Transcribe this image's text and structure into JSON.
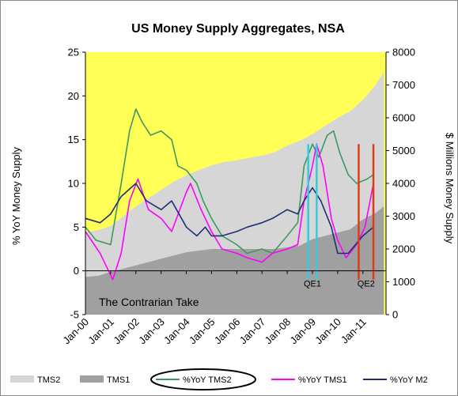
{
  "chart_data": {
    "type": "area",
    "title": "US Money Supply Aggregates, NSA",
    "ylabel": "% YoY  Money  Supply",
    "y2label": "$ Millions  Money  Supply",
    "ylim": [
      -5,
      25
    ],
    "yticks": [
      "-5",
      "0",
      "5",
      "10",
      "15",
      "20",
      "25"
    ],
    "y2lim": [
      0,
      8000
    ],
    "y2ticks": [
      "0",
      "1000",
      "2000",
      "3000",
      "4000",
      "5000",
      "6000",
      "7000",
      "8000"
    ],
    "xlim": [
      "2000-01",
      "2011-12"
    ],
    "xticks": [
      {
        "label": "Jan-00",
        "x": "2000-01"
      },
      {
        "label": "Jan-01",
        "x": "2001-01"
      },
      {
        "label": "Jan-02",
        "x": "2002-01"
      },
      {
        "label": "Jan-03",
        "x": "2003-01"
      },
      {
        "label": "Jan-04",
        "x": "2004-01"
      },
      {
        "label": "Jan-05",
        "x": "2005-01"
      },
      {
        "label": "Jan-06",
        "x": "2006-01"
      },
      {
        "label": "Jan-07",
        "x": "2007-01"
      },
      {
        "label": "Jan-08",
        "x": "2008-01"
      },
      {
        "label": "Jan-09",
        "x": "2009-01"
      },
      {
        "label": "Jan-10",
        "x": "2010-01"
      },
      {
        "label": "Jan-11",
        "x": "2011-01"
      }
    ],
    "annotation": "The Contrarian Take",
    "background_color": "#ffff55",
    "series": [
      {
        "name": "TMS2",
        "axis": "right",
        "kind": "area",
        "color": "#d6d6d6",
        "points": [
          [
            "2000-01",
            2500
          ],
          [
            "2000-07",
            2570
          ],
          [
            "2001-01",
            2700
          ],
          [
            "2001-07",
            3000
          ],
          [
            "2002-01",
            3300
          ],
          [
            "2002-07",
            3550
          ],
          [
            "2003-01",
            3800
          ],
          [
            "2003-07",
            4050
          ],
          [
            "2004-01",
            4250
          ],
          [
            "2004-07",
            4400
          ],
          [
            "2005-01",
            4550
          ],
          [
            "2005-07",
            4650
          ],
          [
            "2006-01",
            4700
          ],
          [
            "2006-07",
            4780
          ],
          [
            "2007-01",
            4850
          ],
          [
            "2007-07",
            4950
          ],
          [
            "2008-01",
            5150
          ],
          [
            "2008-07",
            5300
          ],
          [
            "2009-01",
            5500
          ],
          [
            "2009-07",
            5750
          ],
          [
            "2010-01",
            6000
          ],
          [
            "2010-07",
            6200
          ],
          [
            "2011-01",
            6550
          ],
          [
            "2011-07",
            7000
          ],
          [
            "2011-11",
            7400
          ]
        ]
      },
      {
        "name": "TMS1",
        "axis": "right",
        "kind": "area",
        "color": "#a0a0a0",
        "points": [
          [
            "2000-01",
            1150
          ],
          [
            "2000-07",
            1180
          ],
          [
            "2001-01",
            1300
          ],
          [
            "2001-07",
            1400
          ],
          [
            "2002-01",
            1500
          ],
          [
            "2002-07",
            1600
          ],
          [
            "2003-01",
            1700
          ],
          [
            "2003-07",
            1800
          ],
          [
            "2004-01",
            1900
          ],
          [
            "2004-07",
            1950
          ],
          [
            "2005-01",
            2000
          ],
          [
            "2005-07",
            2000
          ],
          [
            "2006-01",
            2000
          ],
          [
            "2006-07",
            2000
          ],
          [
            "2007-01",
            2000
          ],
          [
            "2007-07",
            2000
          ],
          [
            "2008-01",
            2050
          ],
          [
            "2008-07",
            2100
          ],
          [
            "2009-01",
            2300
          ],
          [
            "2009-07",
            2400
          ],
          [
            "2010-01",
            2500
          ],
          [
            "2010-07",
            2600
          ],
          [
            "2011-01",
            2900
          ],
          [
            "2011-07",
            3100
          ],
          [
            "2011-11",
            3300
          ]
        ]
      },
      {
        "name": "%YoY TMS2",
        "axis": "left",
        "kind": "line",
        "color": "#3d9961",
        "points": [
          [
            "2000-01",
            5
          ],
          [
            "2000-06",
            3.5
          ],
          [
            "2001-01",
            3
          ],
          [
            "2001-06",
            10
          ],
          [
            "2001-10",
            16
          ],
          [
            "2002-01",
            18.5
          ],
          [
            "2002-04",
            17
          ],
          [
            "2002-08",
            15.5
          ],
          [
            "2003-01",
            16
          ],
          [
            "2003-06",
            15
          ],
          [
            "2003-09",
            12
          ],
          [
            "2004-01",
            11.5
          ],
          [
            "2004-06",
            10
          ],
          [
            "2004-09",
            8
          ],
          [
            "2005-01",
            6
          ],
          [
            "2005-06",
            4
          ],
          [
            "2006-01",
            3
          ],
          [
            "2006-06",
            2
          ],
          [
            "2007-01",
            2.5
          ],
          [
            "2007-06",
            2
          ],
          [
            "2008-01",
            4
          ],
          [
            "2008-06",
            5.5
          ],
          [
            "2008-09",
            12
          ],
          [
            "2009-01",
            14.5
          ],
          [
            "2009-04",
            13
          ],
          [
            "2009-08",
            15.5
          ],
          [
            "2009-11",
            16
          ],
          [
            "2010-02",
            13.5
          ],
          [
            "2010-06",
            11
          ],
          [
            "2010-10",
            10
          ],
          [
            "2011-03",
            10.5
          ],
          [
            "2011-06",
            11
          ]
        ]
      },
      {
        "name": "%YoY TMS1",
        "axis": "left",
        "kind": "line",
        "color": "#ff00ff",
        "points": [
          [
            "2000-01",
            4.5
          ],
          [
            "2000-08",
            2
          ],
          [
            "2001-02",
            -1
          ],
          [
            "2001-06",
            2
          ],
          [
            "2001-10",
            8
          ],
          [
            "2002-02",
            10.5
          ],
          [
            "2002-07",
            7
          ],
          [
            "2003-01",
            6
          ],
          [
            "2003-06",
            4.5
          ],
          [
            "2004-01",
            9
          ],
          [
            "2004-03",
            10
          ],
          [
            "2004-08",
            7
          ],
          [
            "2005-01",
            4.5
          ],
          [
            "2005-06",
            2.5
          ],
          [
            "2006-01",
            2
          ],
          [
            "2006-06",
            1.5
          ],
          [
            "2007-01",
            1
          ],
          [
            "2007-06",
            2
          ],
          [
            "2008-01",
            2.5
          ],
          [
            "2008-06",
            3
          ],
          [
            "2008-09",
            8
          ],
          [
            "2009-01",
            12
          ],
          [
            "2009-03",
            14.5
          ],
          [
            "2009-06",
            12
          ],
          [
            "2009-10",
            6
          ],
          [
            "2010-01",
            3.5
          ],
          [
            "2010-05",
            1.5
          ],
          [
            "2010-10",
            3
          ],
          [
            "2011-02",
            5
          ],
          [
            "2011-06",
            10
          ]
        ]
      },
      {
        "name": "%YoY M2",
        "axis": "left",
        "kind": "line",
        "color": "#1f2f73",
        "points": [
          [
            "2000-01",
            6
          ],
          [
            "2000-08",
            5.5
          ],
          [
            "2001-01",
            6.5
          ],
          [
            "2001-06",
            8.5
          ],
          [
            "2002-01",
            10
          ],
          [
            "2002-06",
            8
          ],
          [
            "2003-01",
            7
          ],
          [
            "2003-06",
            8
          ],
          [
            "2004-01",
            5
          ],
          [
            "2004-06",
            4
          ],
          [
            "2004-10",
            5
          ],
          [
            "2005-01",
            4
          ],
          [
            "2005-06",
            4
          ],
          [
            "2006-01",
            4.5
          ],
          [
            "2006-06",
            5
          ],
          [
            "2007-01",
            5.5
          ],
          [
            "2007-06",
            6
          ],
          [
            "2008-01",
            7
          ],
          [
            "2008-06",
            6.5
          ],
          [
            "2008-09",
            8
          ],
          [
            "2009-01",
            9.5
          ],
          [
            "2009-05",
            8
          ],
          [
            "2009-10",
            5
          ],
          [
            "2010-01",
            2
          ],
          [
            "2010-06",
            2
          ],
          [
            "2011-01",
            4
          ],
          [
            "2011-06",
            5
          ]
        ]
      }
    ],
    "markers": [
      {
        "label": "QE1",
        "color": "#33ccdd",
        "dates": [
          "2008-11",
          "2009-03"
        ]
      },
      {
        "label": "QE2",
        "color": "#e03c14",
        "dates": [
          "2010-11",
          "2011-06"
        ]
      }
    ],
    "legend": {
      "placement": "bottom",
      "highlighted": "%YoY TMS2",
      "items": [
        {
          "label": "TMS2",
          "kind": "area",
          "color": "#d6d6d6"
        },
        {
          "label": "TMS1",
          "kind": "area",
          "color": "#a0a0a0"
        },
        {
          "label": "%YoY TMS2",
          "kind": "line",
          "color": "#3d9961"
        },
        {
          "label": "%YoY TMS1",
          "kind": "line",
          "color": "#ff00ff"
        },
        {
          "label": "%YoY M2",
          "kind": "line",
          "color": "#1f2f73"
        }
      ]
    }
  }
}
